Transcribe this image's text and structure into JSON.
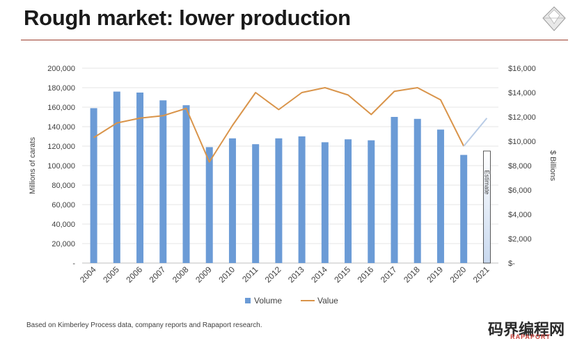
{
  "slide": {
    "title": "Rough market: lower production",
    "footer": "Based on Kimberley Process data, company reports and Rapaport research.",
    "watermark": "码界编程网",
    "watermark_sub": "RAPAPORT"
  },
  "colors": {
    "bar": "#6b9bd6",
    "estimate_bar_top": "#ffffff",
    "estimate_bar_bottom": "#c9d9ef",
    "line": "#d9944a",
    "rule": "#9b3b2a",
    "grid": "#e6e6e6"
  },
  "chart_data": {
    "type": "bar",
    "categories": [
      "2004",
      "2005",
      "2006",
      "2007",
      "2008",
      "2009",
      "2010",
      "2011",
      "2012",
      "2013",
      "2014",
      "2015",
      "2016",
      "2017",
      "2018",
      "2019",
      "2020",
      "2021"
    ],
    "series": [
      {
        "name": "Volume",
        "type": "bar",
        "axis": "left",
        "values": [
          159000,
          176000,
          175000,
          167000,
          162000,
          119000,
          128000,
          122000,
          128000,
          130000,
          124000,
          127000,
          126000,
          150000,
          148000,
          137000,
          111000,
          115000
        ]
      },
      {
        "name": "Value",
        "type": "line",
        "axis": "right",
        "values": [
          10300,
          11500,
          11900,
          12100,
          12700,
          8300,
          11300,
          14000,
          12600,
          14000,
          14400,
          13800,
          12200,
          14100,
          14400,
          13400,
          9600,
          11900
        ]
      }
    ],
    "estimate": {
      "category": "2021",
      "label": "Estimate"
    },
    "ylabel": "Millions of carats",
    "y2label": "$ Billions",
    "ylim": [
      0,
      200000
    ],
    "y2lim": [
      0,
      16000
    ],
    "yticks": [
      "-",
      "20,000",
      "40,000",
      "60,000",
      "80,000",
      "100,000",
      "120,000",
      "140,000",
      "160,000",
      "180,000",
      "200,000"
    ],
    "y2ticks": [
      "$-",
      "$2,000",
      "$4,000",
      "$6,000",
      "$8,000",
      "$10,000",
      "$12,000",
      "$14,000",
      "$16,000"
    ],
    "legend": [
      "Volume",
      "Value"
    ],
    "legend_position": "bottom",
    "grid": true
  }
}
